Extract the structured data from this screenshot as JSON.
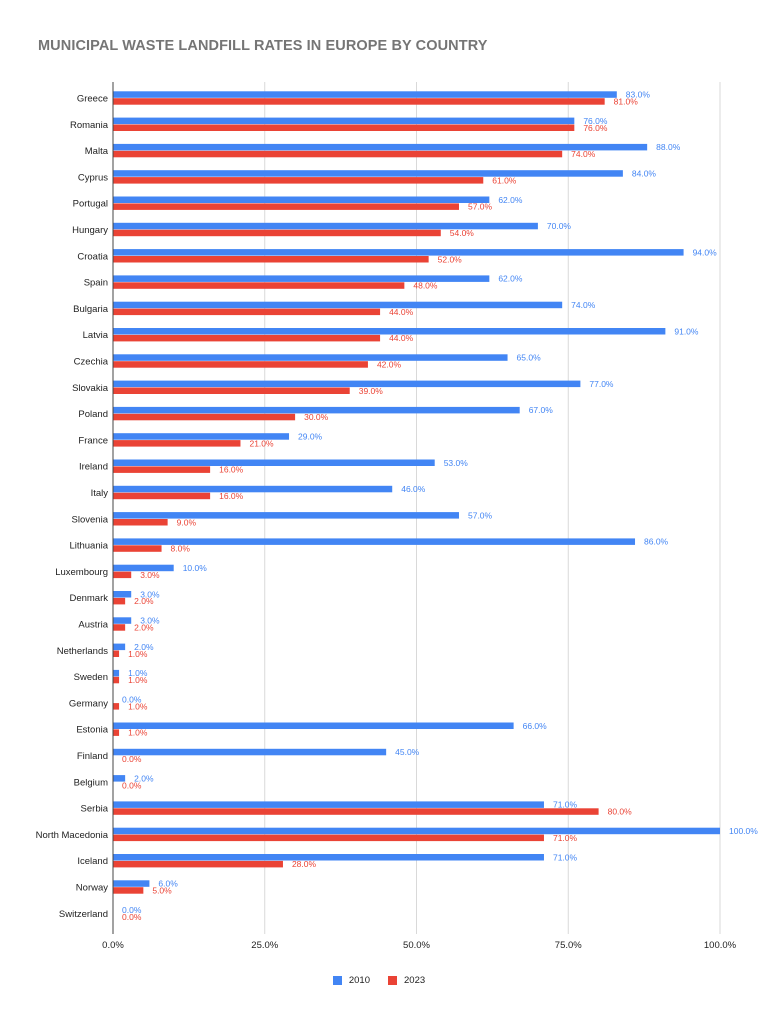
{
  "chart_data": {
    "type": "bar",
    "orientation": "horizontal",
    "title": "MUNICIPAL WASTE LANDFILL RATES IN EUROPE BY COUNTRY",
    "categories": [
      "Greece",
      "Romania",
      "Malta",
      "Cyprus",
      "Portugal",
      "Hungary",
      "Croatia",
      "Spain",
      "Bulgaria",
      "Latvia",
      "Czechia",
      "Slovakia",
      "Poland",
      "France",
      "Ireland",
      "Italy",
      "Slovenia",
      "Lithuania",
      "Luxembourg",
      "Denmark",
      "Austria",
      "Netherlands",
      "Sweden",
      "Germany",
      "Estonia",
      "Finland",
      "Belgium",
      "Serbia",
      "North Macedonia",
      "Iceland",
      "Norway",
      "Switzerland"
    ],
    "series": [
      {
        "name": "2010",
        "color": "#4285f4",
        "values": [
          83,
          76,
          88,
          84,
          62,
          70,
          94,
          62,
          74,
          91,
          65,
          77,
          67,
          29,
          53,
          46,
          57,
          86,
          10,
          3,
          3,
          2,
          1,
          0,
          66,
          45,
          2,
          71,
          100,
          71,
          6,
          0
        ]
      },
      {
        "name": "2023",
        "color": "#ea4335",
        "values": [
          81,
          76,
          74,
          61,
          57,
          54,
          52,
          48,
          44,
          44,
          42,
          39,
          30,
          21,
          16,
          16,
          9,
          8,
          3,
          2,
          2,
          1,
          1,
          1,
          1,
          0,
          0,
          80,
          71,
          28,
          5,
          0
        ]
      }
    ],
    "xlim": [
      0,
      100
    ],
    "x_ticks": [
      "0.0%",
      "25.0%",
      "50.0%",
      "75.0%",
      "100.0%"
    ],
    "value_format": "percent_1dp",
    "grid": "vertical",
    "legend": "bottom"
  }
}
